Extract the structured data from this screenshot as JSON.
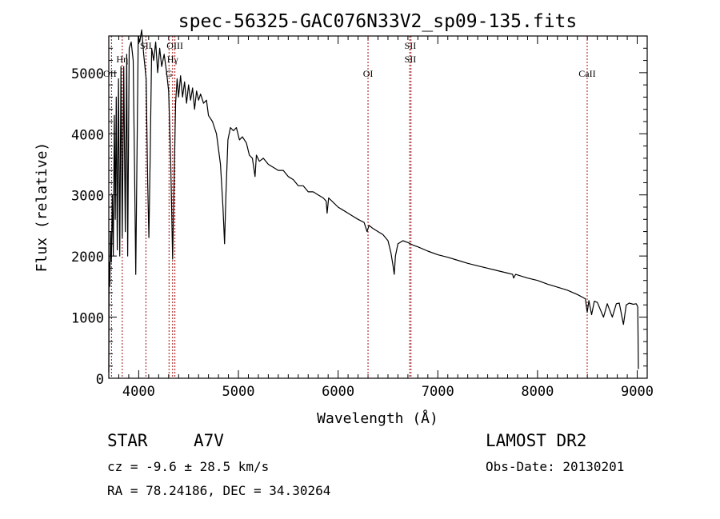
{
  "chart_data": {
    "type": "line",
    "title": "spec-56325-GAC076N33V2_sp09-135.fits",
    "xlabel": "Wavelength (Å)",
    "ylabel": "Flux (relative)",
    "xlim": [
      3700,
      9100
    ],
    "ylim": [
      0,
      5600
    ],
    "xticks": [
      4000,
      5000,
      6000,
      7000,
      8000,
      9000
    ],
    "xtick_labels": [
      "4000",
      "5000",
      "6000",
      "7000",
      "8000",
      "9000"
    ],
    "yticks": [
      0,
      1000,
      2000,
      3000,
      4000,
      5000
    ],
    "ytick_labels": [
      "0",
      "1000",
      "2000",
      "3000",
      "4000",
      "5000"
    ],
    "grid": false,
    "series": [
      {
        "name": "spectrum",
        "color": "#000000",
        "points": [
          [
            3700,
            100
          ],
          [
            3703,
            1900
          ],
          [
            3710,
            1500
          ],
          [
            3718,
            2400
          ],
          [
            3726,
            1900
          ],
          [
            3735,
            3000
          ],
          [
            3745,
            2000
          ],
          [
            3755,
            4300
          ],
          [
            3765,
            2600
          ],
          [
            3775,
            4600
          ],
          [
            3785,
            2100
          ],
          [
            3797,
            4900
          ],
          [
            3810,
            2000
          ],
          [
            3822,
            5100
          ],
          [
            3835,
            2300
          ],
          [
            3850,
            5100
          ],
          [
            3865,
            2400
          ],
          [
            3880,
            5300
          ],
          [
            3889,
            2000
          ],
          [
            3905,
            5400
          ],
          [
            3925,
            5500
          ],
          [
            3945,
            5200
          ],
          [
            3960,
            3200
          ],
          [
            3970,
            1700
          ],
          [
            3980,
            3200
          ],
          [
            3995,
            5600
          ],
          [
            4010,
            5500
          ],
          [
            4030,
            5700
          ],
          [
            4050,
            5300
          ],
          [
            4075,
            4900
          ],
          [
            4090,
            3200
          ],
          [
            4102,
            2300
          ],
          [
            4115,
            3600
          ],
          [
            4130,
            5400
          ],
          [
            4150,
            5200
          ],
          [
            4170,
            5500
          ],
          [
            4190,
            5000
          ],
          [
            4210,
            5400
          ],
          [
            4230,
            5100
          ],
          [
            4255,
            5300
          ],
          [
            4280,
            5000
          ],
          [
            4300,
            4700
          ],
          [
            4320,
            3600
          ],
          [
            4340,
            1950
          ],
          [
            4355,
            3200
          ],
          [
            4370,
            4500
          ],
          [
            4385,
            4900
          ],
          [
            4400,
            4600
          ],
          [
            4420,
            4950
          ],
          [
            4440,
            4600
          ],
          [
            4460,
            4850
          ],
          [
            4480,
            4500
          ],
          [
            4500,
            4800
          ],
          [
            4520,
            4550
          ],
          [
            4540,
            4750
          ],
          [
            4560,
            4400
          ],
          [
            4580,
            4700
          ],
          [
            4600,
            4550
          ],
          [
            4620,
            4650
          ],
          [
            4650,
            4500
          ],
          [
            4680,
            4550
          ],
          [
            4700,
            4300
          ],
          [
            4740,
            4200
          ],
          [
            4780,
            4000
          ],
          [
            4820,
            3500
          ],
          [
            4845,
            2800
          ],
          [
            4861,
            2200
          ],
          [
            4875,
            3000
          ],
          [
            4895,
            3900
          ],
          [
            4920,
            4100
          ],
          [
            4950,
            4050
          ],
          [
            4980,
            4100
          ],
          [
            5010,
            3900
          ],
          [
            5040,
            3950
          ],
          [
            5080,
            3850
          ],
          [
            5110,
            3650
          ],
          [
            5140,
            3600
          ],
          [
            5167,
            3300
          ],
          [
            5180,
            3650
          ],
          [
            5210,
            3550
          ],
          [
            5250,
            3600
          ],
          [
            5300,
            3500
          ],
          [
            5350,
            3450
          ],
          [
            5400,
            3400
          ],
          [
            5450,
            3400
          ],
          [
            5500,
            3300
          ],
          [
            5550,
            3250
          ],
          [
            5600,
            3150
          ],
          [
            5650,
            3150
          ],
          [
            5700,
            3050
          ],
          [
            5750,
            3050
          ],
          [
            5800,
            3000
          ],
          [
            5850,
            2950
          ],
          [
            5880,
            2900
          ],
          [
            5890,
            2700
          ],
          [
            5905,
            2950
          ],
          [
            5950,
            2880
          ],
          [
            6000,
            2800
          ],
          [
            6050,
            2750
          ],
          [
            6100,
            2700
          ],
          [
            6150,
            2650
          ],
          [
            6200,
            2600
          ],
          [
            6260,
            2550
          ],
          [
            6290,
            2400
          ],
          [
            6310,
            2500
          ],
          [
            6350,
            2450
          ],
          [
            6400,
            2400
          ],
          [
            6450,
            2350
          ],
          [
            6500,
            2250
          ],
          [
            6530,
            2050
          ],
          [
            6550,
            1850
          ],
          [
            6563,
            1700
          ],
          [
            6575,
            2000
          ],
          [
            6600,
            2200
          ],
          [
            6650,
            2250
          ],
          [
            6700,
            2220
          ],
          [
            6750,
            2180
          ],
          [
            6800,
            2150
          ],
          [
            6900,
            2080
          ],
          [
            7000,
            2020
          ],
          [
            7100,
            1980
          ],
          [
            7200,
            1930
          ],
          [
            7300,
            1880
          ],
          [
            7400,
            1840
          ],
          [
            7500,
            1800
          ],
          [
            7600,
            1760
          ],
          [
            7700,
            1720
          ],
          [
            7750,
            1700
          ],
          [
            7760,
            1640
          ],
          [
            7780,
            1700
          ],
          [
            7900,
            1640
          ],
          [
            8000,
            1600
          ],
          [
            8100,
            1540
          ],
          [
            8200,
            1490
          ],
          [
            8300,
            1440
          ],
          [
            8400,
            1370
          ],
          [
            8480,
            1300
          ],
          [
            8498,
            1080
          ],
          [
            8515,
            1270
          ],
          [
            8542,
            1040
          ],
          [
            8570,
            1260
          ],
          [
            8600,
            1240
          ],
          [
            8662,
            1000
          ],
          [
            8700,
            1220
          ],
          [
            8750,
            1000
          ],
          [
            8790,
            1220
          ],
          [
            8820,
            1230
          ],
          [
            8862,
            880
          ],
          [
            8890,
            1200
          ],
          [
            8920,
            1230
          ],
          [
            8960,
            1210
          ],
          [
            8990,
            1220
          ],
          [
            9005,
            1170
          ],
          [
            9012,
            150
          ]
        ]
      }
    ],
    "line_markers": [
      {
        "label": "OII",
        "wavelength": 3727
      },
      {
        "label": "Hη",
        "wavelength": 3835
      },
      {
        "label": "SII",
        "wavelength": 4072
      },
      {
        "label": "G",
        "wavelength": 4304
      },
      {
        "label": "Hγ",
        "wavelength": 4340
      },
      {
        "label": "OIII",
        "wavelength": 4363
      },
      {
        "label": "OI",
        "wavelength": 6300
      },
      {
        "label": "SII",
        "wavelength": 6717
      },
      {
        "label": "SII",
        "wavelength": 6731
      },
      {
        "label": "CaII",
        "wavelength": 8498
      }
    ],
    "marker_color": "#a01010"
  },
  "info": {
    "object_type": "STAR",
    "subclass": "A7V",
    "cz": "cz = -9.6 ± 28.5 km/s",
    "coords": "RA =  78.24186, DEC =  34.30264",
    "survey": "LAMOST DR2",
    "obs_date": "Obs-Date: 20130201"
  }
}
